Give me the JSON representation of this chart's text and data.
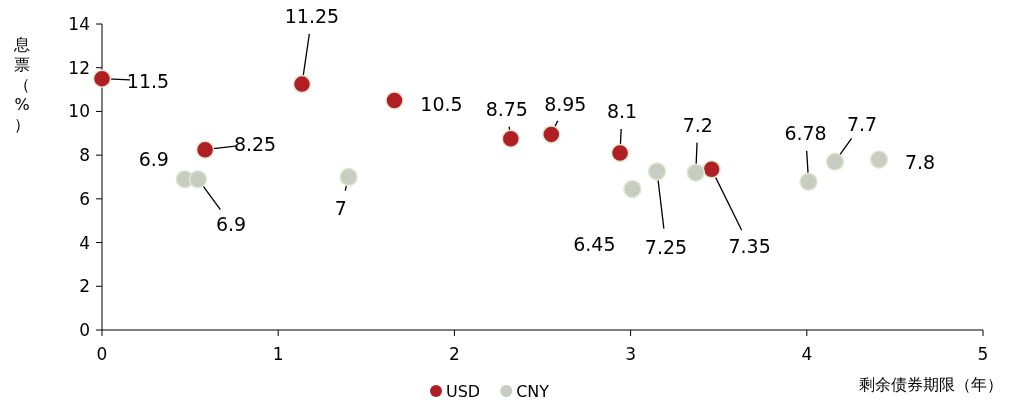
{
  "chart_data": {
    "type": "scatter",
    "xlabel": "剩余债券期限（年）",
    "ylabel": "息票（%）",
    "xlim": [
      0,
      5
    ],
    "ylim": [
      0,
      14
    ],
    "xticks": [
      0,
      1,
      2,
      3,
      4,
      5
    ],
    "yticks": [
      0,
      2,
      4,
      6,
      8,
      10,
      12,
      14
    ],
    "grid": false,
    "legend": "bottom",
    "marker": "circle",
    "data_labels": true,
    "series": [
      {
        "name": "USD",
        "color": "#b01f24",
        "x": [
          0,
          0.585,
          1.135,
          1.66,
          2.32,
          2.55,
          2.94,
          3.46
        ],
        "values": [
          11.5,
          8.25,
          11.25,
          10.5,
          8.75,
          8.95,
          8.1,
          7.35
        ]
      },
      {
        "name": "CNY",
        "color": "#c9ccc0",
        "x": [
          0.47,
          0.545,
          1.4,
          3.01,
          3.15,
          3.37,
          4.01,
          4.16,
          4.41
        ],
        "values": [
          6.9,
          6.9,
          7,
          6.45,
          7.25,
          7.2,
          6.78,
          7.7,
          7.8
        ]
      }
    ]
  }
}
